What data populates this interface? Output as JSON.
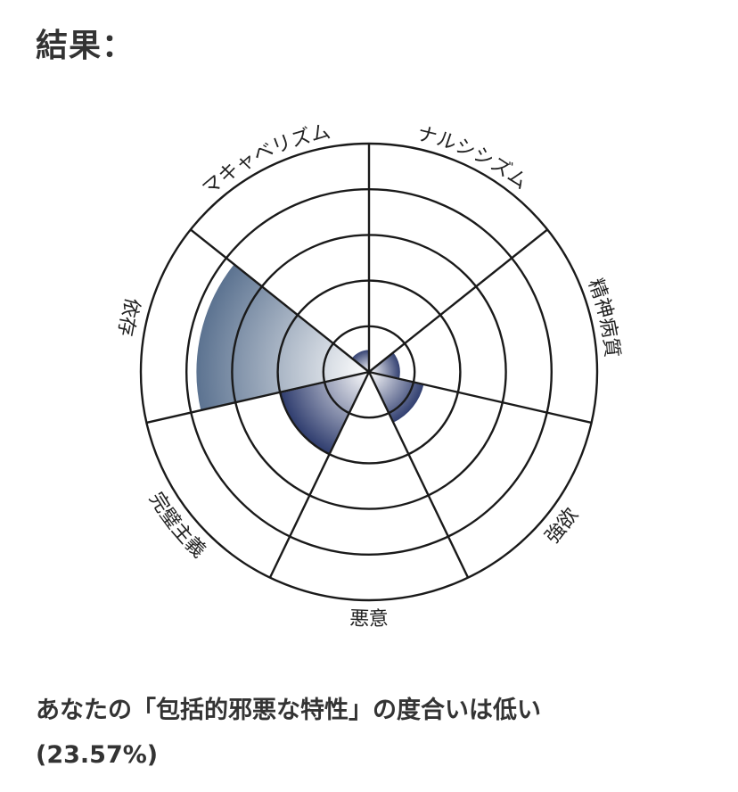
{
  "title": "結果：",
  "chart_data": {
    "type": "polar-area",
    "categories": [
      "マキャベリズム",
      "ナルシシズム",
      "精神病質",
      "強欲",
      "悪意",
      "完璧主義",
      "依存"
    ],
    "values": [
      10,
      0,
      14,
      25,
      0,
      40,
      76
    ],
    "rlim": [
      0,
      100
    ],
    "ring_ticks": [
      20,
      40,
      60,
      80,
      100
    ],
    "grid": true,
    "colors": {
      "依存": "#5b7290",
      "default": "#2e3c6e",
      "grid": "#1a1a1a"
    }
  },
  "result": {
    "line1": "あなたの「包括的邪悪な特性」の度合いは低い",
    "line2": "(23.57%)"
  }
}
